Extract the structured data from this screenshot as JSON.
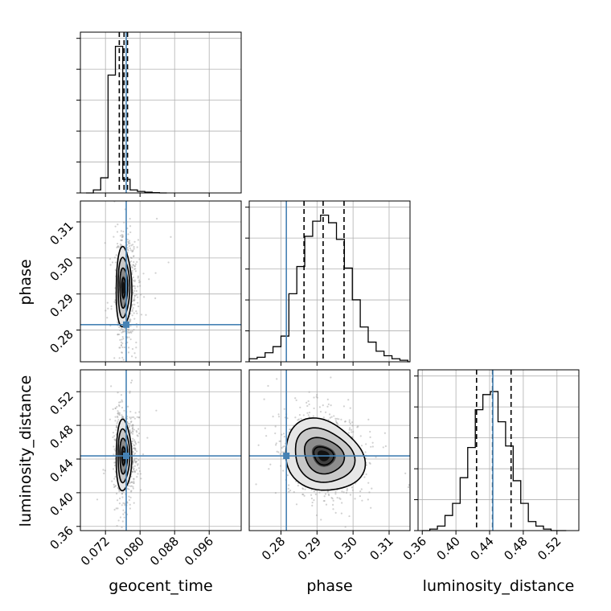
{
  "chart_data": {
    "type": "corner",
    "parameters": [
      "geocent_time",
      "phase",
      "luminosity_distance"
    ],
    "truths": {
      "geocent_time": 0.0768,
      "phase": 0.2815,
      "luminosity_distance": 0.4438
    },
    "ranges": {
      "geocent_time": [
        0.0662,
        0.1034
      ],
      "phase": [
        0.2712,
        0.3158
      ],
      "luminosity_distance": [
        0.355,
        0.546
      ]
    },
    "ticks": {
      "geocent_time": [
        "0.072",
        "0.080",
        "0.088",
        "0.096"
      ],
      "phase": [
        "0.28",
        "0.29",
        "0.30",
        "0.31"
      ],
      "luminosity_distance": [
        "0.36",
        "0.40",
        "0.44",
        "0.48",
        "0.52"
      ]
    },
    "quantiles": {
      "geocent_time": [
        0.0752,
        0.0763,
        0.0771
      ],
      "phase": [
        0.2864,
        0.2917,
        0.2975
      ],
      "luminosity_distance": [
        0.4245,
        0.4435,
        0.4655
      ]
    },
    "histograms": {
      "geocent_time": {
        "edges": [
          0.0675,
          0.0692,
          0.0709,
          0.0726,
          0.0743,
          0.076,
          0.0777,
          0.0794,
          0.0811,
          0.0828,
          0.0845,
          0.0862
        ],
        "counts": [
          0,
          0.02,
          0.1,
          0.78,
          0.97,
          0.09,
          0.02,
          0.01,
          0.005,
          0.002,
          0
        ]
      },
      "phase": {
        "edges": [
          0.2712,
          0.2734,
          0.2756,
          0.2778,
          0.28,
          0.2822,
          0.2844,
          0.2866,
          0.2888,
          0.291,
          0.2932,
          0.2954,
          0.2976,
          0.2998,
          0.302,
          0.3042,
          0.3064,
          0.3086,
          0.3108,
          0.313,
          0.3152,
          0.3158
        ],
        "counts": [
          0.02,
          0.03,
          0.06,
          0.1,
          0.17,
          0.45,
          0.63,
          0.83,
          0.93,
          0.97,
          0.92,
          0.81,
          0.62,
          0.41,
          0.23,
          0.13,
          0.07,
          0.04,
          0.02,
          0.01,
          0.0
        ]
      },
      "luminosity_distance": {
        "edges": [
          0.36,
          0.369,
          0.378,
          0.387,
          0.396,
          0.405,
          0.414,
          0.423,
          0.432,
          0.441,
          0.45,
          0.459,
          0.468,
          0.477,
          0.486,
          0.495,
          0.504,
          0.513,
          0.522,
          0.531
        ],
        "counts": [
          0.0,
          0.01,
          0.03,
          0.1,
          0.18,
          0.35,
          0.55,
          0.8,
          0.9,
          0.92,
          0.72,
          0.56,
          0.33,
          0.18,
          0.06,
          0.03,
          0.01,
          0.0,
          0.0
        ]
      }
    },
    "grid": true
  }
}
